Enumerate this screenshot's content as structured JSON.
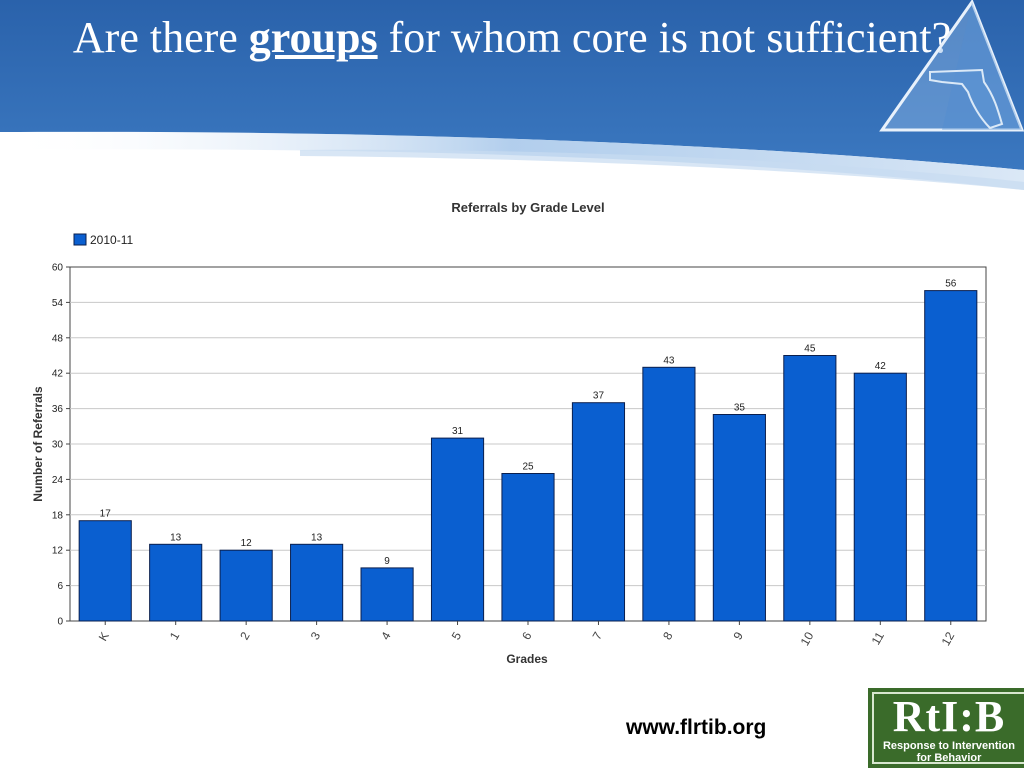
{
  "slide": {
    "title_before": "Are there ",
    "title_emphasis": "groups",
    "title_after": " for whom core is not sufficient?",
    "footer_url": "www.flrtib.org"
  },
  "logo": {
    "wordmark": "RtI:B",
    "tagline_1": "Response to Intervention",
    "tagline_2": "for Behavior"
  },
  "colors": {
    "header_blue": "#2f69b0",
    "header_light": "#6c9fd6",
    "bar_fill": "#0a5fd0",
    "bar_stroke": "#0a1f4e",
    "logo_green": "#3a6b2a"
  },
  "chart_data": {
    "type": "bar",
    "title": "Referrals by Grade Level",
    "xlabel": "Grades",
    "ylabel": "Number of Referrals",
    "categories": [
      "K",
      "1",
      "2",
      "3",
      "4",
      "5",
      "6",
      "7",
      "8",
      "9",
      "10",
      "11",
      "12"
    ],
    "series": [
      {
        "name": "2010-11",
        "values": [
          17,
          13,
          12,
          13,
          9,
          31,
          25,
          37,
          43,
          35,
          45,
          42,
          56
        ]
      }
    ],
    "ylim": [
      0,
      60
    ],
    "yticks": [
      0,
      6,
      12,
      18,
      24,
      30,
      36,
      42,
      48,
      54,
      60
    ],
    "grid": true,
    "legend": "top-left",
    "data_labels": true
  }
}
